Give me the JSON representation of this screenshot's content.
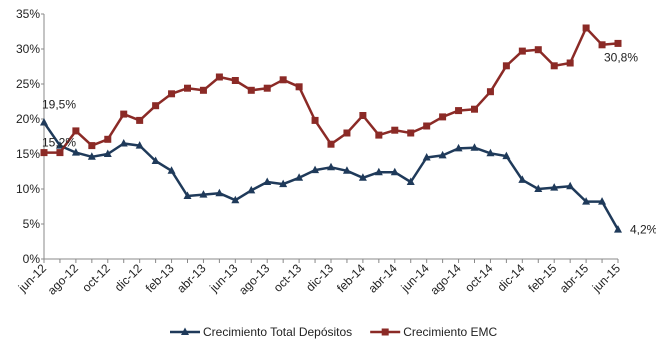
{
  "chart_data": {
    "type": "line",
    "title": "",
    "xlabel": "",
    "ylabel": "",
    "ylim": [
      0,
      35
    ],
    "yticks": [
      "0%",
      "5%",
      "10%",
      "15%",
      "20%",
      "25%",
      "30%",
      "35%"
    ],
    "x_tick_labels": [
      "jun-12",
      "ago-12",
      "oct-12",
      "dic-12",
      "feb-13",
      "abr-13",
      "jun-13",
      "ago-13",
      "oct-13",
      "dic-13",
      "feb-14",
      "abr-14",
      "jun-14",
      "ago-14",
      "oct-14",
      "dic-14",
      "feb-15",
      "abr-15",
      "jun-15"
    ],
    "x": [
      "jun-12",
      "jul-12",
      "ago-12",
      "sep-12",
      "oct-12",
      "nov-12",
      "dic-12",
      "ene-13",
      "feb-13",
      "mar-13",
      "abr-13",
      "may-13",
      "jun-13",
      "jul-13",
      "ago-13",
      "sep-13",
      "oct-13",
      "nov-13",
      "dic-13",
      "ene-14",
      "feb-14",
      "mar-14",
      "abr-14",
      "may-14",
      "jun-14",
      "jul-14",
      "ago-14",
      "sep-14",
      "oct-14",
      "nov-14",
      "dic-14",
      "ene-15",
      "feb-15",
      "mar-15",
      "abr-15",
      "may-15",
      "jun-15"
    ],
    "series": [
      {
        "name": "Crecimiento Total Depósitos",
        "color": "#1f3a5a",
        "marker": "triangle",
        "values": [
          19.5,
          16.2,
          15.2,
          14.6,
          15.0,
          16.5,
          16.2,
          14.0,
          12.6,
          9.0,
          9.2,
          9.4,
          8.4,
          9.8,
          11.0,
          10.7,
          11.6,
          12.7,
          13.1,
          12.6,
          11.6,
          12.4,
          12.4,
          11.0,
          14.5,
          14.8,
          15.8,
          15.9,
          15.1,
          14.7,
          11.3,
          10.0,
          10.2,
          10.4,
          8.2,
          8.2,
          4.2
        ]
      },
      {
        "name": "Crecimiento EMC",
        "color": "#8b2a26",
        "marker": "square",
        "values": [
          15.2,
          15.2,
          18.3,
          16.2,
          17.1,
          20.7,
          19.8,
          21.9,
          23.6,
          24.4,
          24.1,
          26.0,
          25.5,
          24.1,
          24.4,
          25.6,
          24.6,
          19.8,
          16.4,
          18.0,
          20.5,
          17.7,
          18.4,
          18.0,
          19.0,
          20.3,
          21.2,
          21.4,
          23.9,
          27.6,
          29.7,
          29.9,
          27.6,
          28.0,
          33.0,
          30.6,
          30.8
        ]
      }
    ],
    "annotations": [
      {
        "text": "19,5%",
        "series": 0,
        "index": 0
      },
      {
        "text": "15,2%",
        "series": 1,
        "index": 0
      },
      {
        "text": "4,2%",
        "series": 0,
        "index": 36
      },
      {
        "text": "30,8%",
        "series": 1,
        "index": 36
      }
    ],
    "legend": {
      "position": "bottom"
    }
  }
}
